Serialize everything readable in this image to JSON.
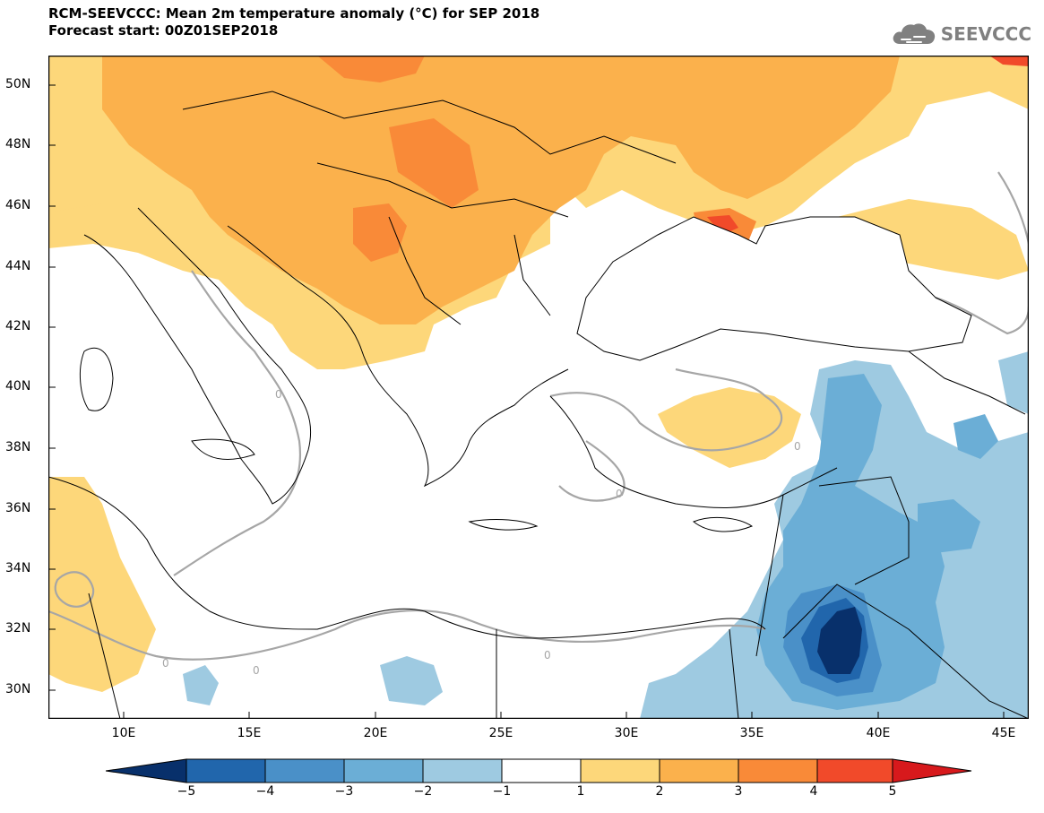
{
  "title": {
    "line1": "RCM-SEEVCCC: Mean 2m temperature anomaly (°C) for SEP 2018",
    "line2": "Forecast start: 00Z01SEP2018"
  },
  "logo": {
    "text": "SEEVCCC",
    "icon": "cloud-icon",
    "color": "#808080"
  },
  "map": {
    "lat_range": [
      29,
      51
    ],
    "lon_range": [
      7,
      46
    ],
    "lat_labels": [
      "50N",
      "48N",
      "46N",
      "44N",
      "42N",
      "40N",
      "38N",
      "36N",
      "34N",
      "32N",
      "30N"
    ],
    "lon_labels": [
      "10E",
      "15E",
      "20E",
      "25E",
      "30E",
      "35E",
      "40E",
      "45E"
    ],
    "contour_label": "0"
  },
  "colorbar": {
    "labels": [
      "−5",
      "−4",
      "−3",
      "−2",
      "−1",
      "1",
      "2",
      "3",
      "4",
      "5"
    ],
    "colors": [
      "#08306b",
      "#2166ac",
      "#4a90c8",
      "#6baed6",
      "#9ecae1",
      "#ffffff",
      "#fdd77a",
      "#fbb14c",
      "#f98a38",
      "#f14a2a",
      "#d7191c"
    ]
  }
}
